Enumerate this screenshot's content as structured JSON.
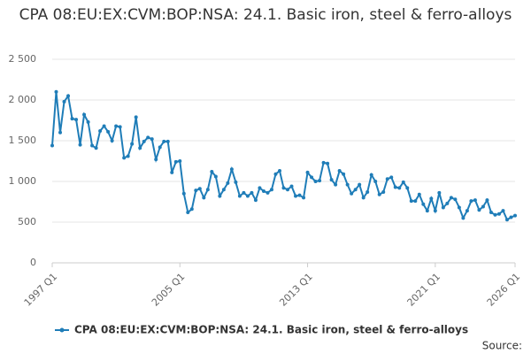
{
  "chart_data": {
    "type": "line",
    "title": "CPA 08:EU:EX:CVM:BOP:NSA: 24.1. Basic iron, steel & ferro-alloys",
    "source": "Source:",
    "categories": [
      "1997 Q1",
      null,
      null,
      null,
      null,
      null,
      null,
      null,
      null,
      null,
      null,
      null,
      null,
      null,
      null,
      null,
      null,
      null,
      null,
      null,
      null,
      null,
      null,
      null,
      null,
      null,
      null,
      null,
      null,
      null,
      null,
      null,
      "2005 Q1",
      null,
      null,
      null,
      null,
      null,
      null,
      null,
      null,
      null,
      null,
      null,
      null,
      null,
      null,
      null,
      null,
      null,
      null,
      null,
      null,
      null,
      null,
      null,
      null,
      null,
      null,
      null,
      null,
      null,
      null,
      null,
      "2013 Q1",
      null,
      null,
      null,
      null,
      null,
      null,
      null,
      null,
      null,
      null,
      null,
      null,
      null,
      null,
      null,
      null,
      null,
      null,
      null,
      null,
      null,
      null,
      null,
      null,
      null,
      null,
      null,
      null,
      null,
      null,
      null,
      "2021 Q1",
      null,
      null,
      null,
      null,
      null,
      null,
      null,
      null,
      null,
      null,
      null,
      null,
      null,
      null,
      null,
      null,
      null,
      null,
      null,
      "2026 Q1"
    ],
    "series": [
      {
        "name": "CPA 08:EU:EX:CVM:BOP:NSA: 24.1. Basic iron, steel & ferro-alloys",
        "color": "#1f7db8",
        "values": [
          1440,
          2100,
          1600,
          1980,
          2050,
          1770,
          1760,
          1450,
          1820,
          1730,
          1440,
          1410,
          1620,
          1680,
          1610,
          1500,
          1680,
          1670,
          1290,
          1310,
          1460,
          1790,
          1410,
          1490,
          1540,
          1520,
          1270,
          1420,
          1490,
          1490,
          1110,
          1240,
          1250,
          850,
          620,
          660,
          890,
          910,
          800,
          900,
          1120,
          1060,
          820,
          900,
          980,
          1150,
          990,
          820,
          860,
          820,
          860,
          770,
          920,
          880,
          860,
          900,
          1090,
          1130,
          920,
          900,
          940,
          820,
          830,
          800,
          1110,
          1050,
          1000,
          1010,
          1230,
          1220,
          1020,
          960,
          1130,
          1090,
          960,
          850,
          900,
          960,
          800,
          870,
          1080,
          1000,
          840,
          870,
          1030,
          1050,
          930,
          920,
          990,
          920,
          760,
          760,
          840,
          720,
          640,
          790,
          640,
          860,
          680,
          730,
          800,
          780,
          680,
          550,
          640,
          760,
          770,
          650,
          690,
          770,
          620,
          590,
          600,
          640,
          530,
          560,
          580
        ]
      }
    ],
    "ylim": [
      0,
      2500
    ],
    "yticks": [
      0,
      {
        "value": 500,
        "label": "500"
      },
      {
        "value": 1000,
        "label": "1 000"
      },
      {
        "value": 1500,
        "label": "1 500"
      },
      {
        "value": 2000,
        "label": "2 000"
      },
      {
        "value": 2500,
        "label": "2 500"
      }
    ],
    "grid": true
  }
}
